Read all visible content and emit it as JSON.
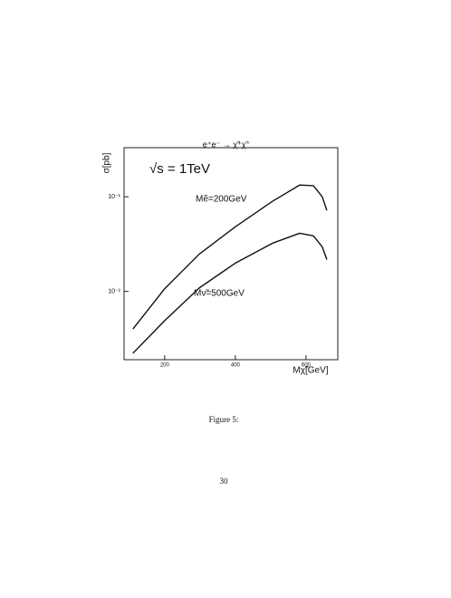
{
  "chart_data": {
    "type": "line",
    "title": "e⁺e⁻ → χ̃⁺χ̃⁻",
    "x_label": "Mχ̃[GeV]",
    "y_label": "σ[pb]",
    "annotation": "√s = 1TeV",
    "log_y": true,
    "grid": false,
    "xlim": [
      85,
      690
    ],
    "ylim": [
      0.0019,
      0.33
    ],
    "xticks": [
      200,
      400,
      600
    ],
    "yticks": [
      {
        "value": 0.01,
        "label": "10⁻²"
      },
      {
        "value": 0.1,
        "label": "10⁻¹"
      }
    ],
    "x": [
      110,
      200,
      298,
      400,
      505,
      582,
      621,
      646,
      659
    ],
    "series": [
      {
        "name": "Mẽ=200GeV",
        "color": "#111111",
        "values": [
          0.004,
          0.0107,
          0.0248,
          0.0482,
          0.0895,
          0.133,
          0.131,
          0.1,
          0.0717
        ]
      },
      {
        "name": "Mν̃=500GeV",
        "color": "#111111",
        "values": [
          0.00222,
          0.00492,
          0.0109,
          0.0199,
          0.0323,
          0.0412,
          0.0386,
          0.0296,
          0.0217
        ]
      }
    ]
  },
  "caption": "Figure 5:",
  "page_number": "30"
}
